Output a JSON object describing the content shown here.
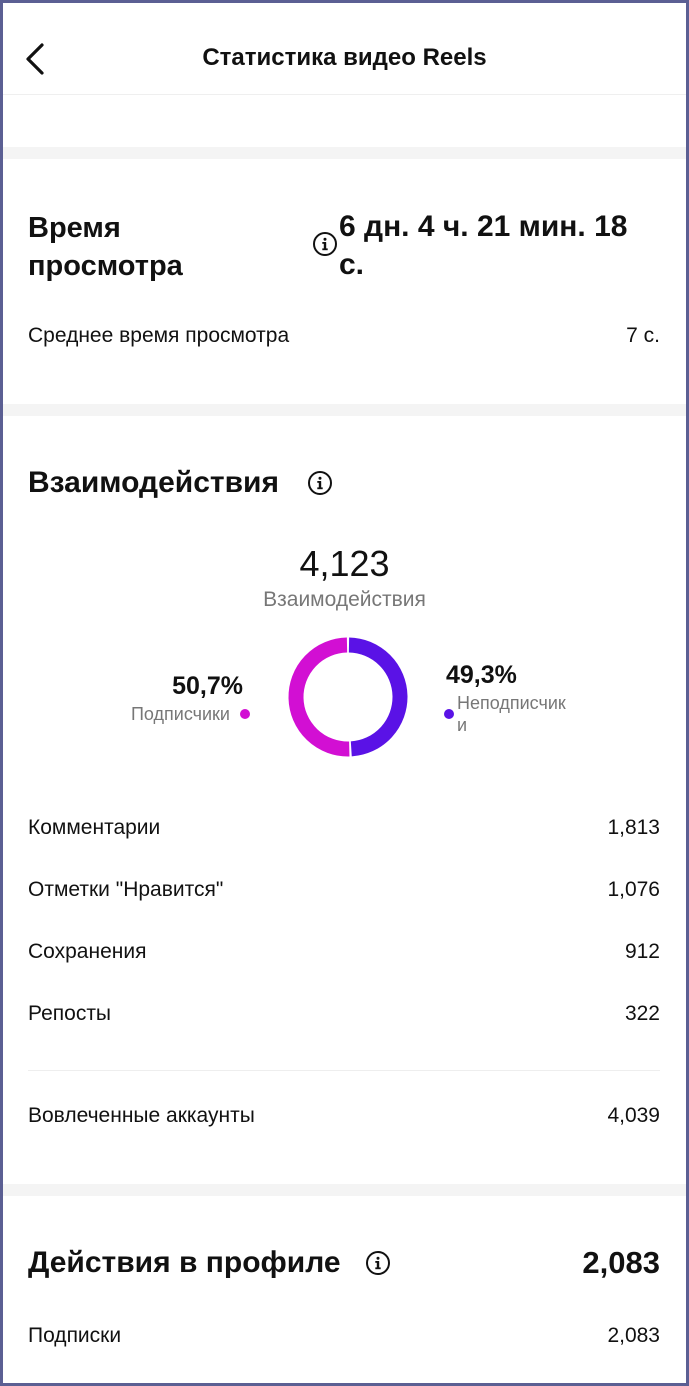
{
  "header": {
    "title": "Статистика видео Reels",
    "back_icon": "chevron-left-icon"
  },
  "watch_time": {
    "title_line1": "Время",
    "title_line2": "просмотра",
    "value_line1": "6 дн. 4 ч. 21 мин. 18",
    "value_line2": "с.",
    "avg_label": "Среднее время просмотра",
    "avg_value": "7 с."
  },
  "interactions": {
    "title": "Взаимодействия",
    "total": "4,123",
    "total_label": "Взаимодействия",
    "followers_percent": "50,7%",
    "followers_label": "Подписчики",
    "nonfollowers_percent": "49,3%",
    "nonfollowers_label_line1": "Неподписчик",
    "nonfollowers_label_line2": "и",
    "followers_color": "#d20fd3",
    "nonfollowers_color": "#5a12e6",
    "rows": [
      {
        "label": "Комментарии",
        "value": "1,813"
      },
      {
        "label": "Отметки \"Нравится\"",
        "value": "1,076"
      },
      {
        "label": "Сохранения",
        "value": "912"
      },
      {
        "label": "Репосты",
        "value": "322"
      }
    ],
    "accounts_label": "Вовлеченные аккаунты",
    "accounts_value": "4,039"
  },
  "chart_data": {
    "type": "pie",
    "categories": [
      "Подписчики",
      "Неподписчики"
    ],
    "values": [
      50.7,
      49.3
    ]
  },
  "profile": {
    "title": "Действия в профиле",
    "total": "2,083",
    "follows_label": "Подписки",
    "follows_value": "2,083"
  }
}
